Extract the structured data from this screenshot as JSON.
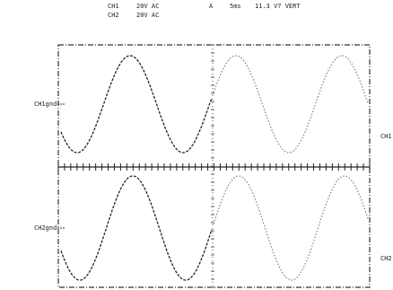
{
  "header": {
    "channels": [
      {
        "name": "CH1",
        "setting": "20V AC"
      },
      {
        "name": "CH2",
        "setting": "20V AC"
      }
    ],
    "trigger": "A",
    "timebase": "5ms",
    "level": "11.3 V7 VERT"
  },
  "labels": {
    "ch1_ground": "CH1gnd",
    "ch2_ground": "CH2gnd",
    "ch1_marker": "CH1",
    "ch2_marker": "CH2"
  }
}
